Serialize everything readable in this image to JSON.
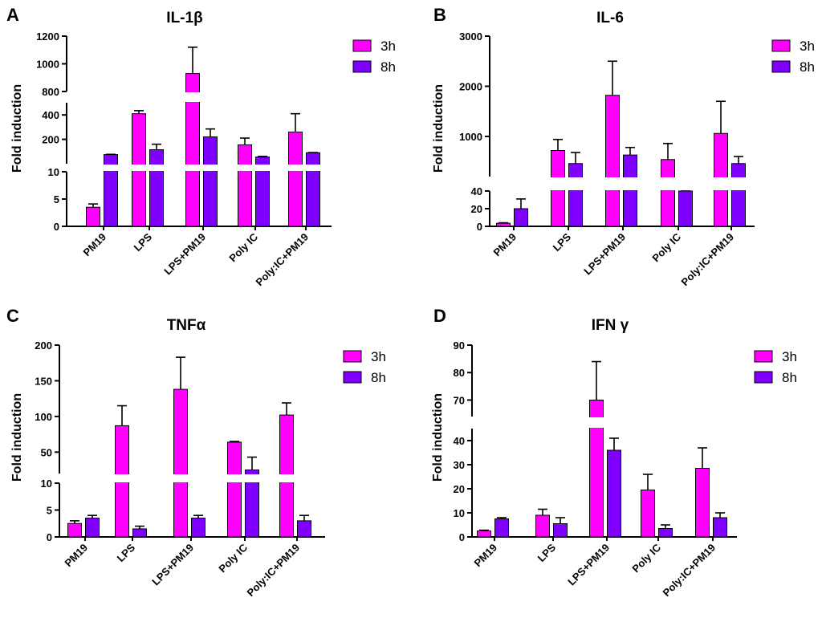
{
  "colors": {
    "3h": "#ff00ff",
    "8h": "#7f00ff",
    "axis": "#000000",
    "break": "#ffffff"
  },
  "chart_data": [
    {
      "type": "bar",
      "panel": "A",
      "title": "IL-1β",
      "xlabel": "",
      "ylabel": "Fold induction",
      "categories": [
        "PM19",
        "LPS",
        "LPS+PM19",
        "Poly IC",
        "Poly:IC+PM19"
      ],
      "series": [
        {
          "name": "3h",
          "values": [
            3.5,
            410,
            930,
            155,
            260
          ],
          "errors": [
            0.6,
            25,
            190,
            55,
            150
          ]
        },
        {
          "name": "8h",
          "values": [
            75,
            115,
            220,
            55,
            90
          ],
          "errors": [
            2,
            45,
            65,
            5,
            2
          ]
        }
      ],
      "y_axis_segments": [
        {
          "range": [
            0,
            10
          ],
          "ticks": [
            0,
            5,
            10
          ]
        },
        {
          "range": [
            0,
            500
          ],
          "ticks": [
            200,
            400
          ]
        },
        {
          "range": [
            800,
            1200
          ],
          "ticks": [
            800,
            1000,
            1200
          ]
        }
      ],
      "legend": "top-right"
    },
    {
      "type": "bar",
      "panel": "B",
      "title": "IL-6",
      "xlabel": "",
      "ylabel": "Fold induction",
      "categories": [
        "PM19",
        "LPS",
        "LPS+PM19",
        "Poly IC",
        "Poly:IC+PM19"
      ],
      "series": [
        {
          "name": "3h",
          "values": [
            3.5,
            720,
            1820,
            540,
            1060
          ],
          "errors": [
            0.5,
            220,
            680,
            320,
            640
          ]
        },
        {
          "name": "8h",
          "values": [
            20,
            460,
            630,
            130,
            460
          ],
          "errors": [
            11,
            220,
            150,
            5,
            140
          ]
        }
      ],
      "y_axis_segments": [
        {
          "range": [
            0,
            40
          ],
          "ticks": [
            0,
            20,
            40
          ]
        },
        {
          "range": [
            200,
            3000
          ],
          "ticks": [
            1000,
            2000,
            3000
          ]
        }
      ],
      "legend": "top-right"
    },
    {
      "type": "bar",
      "panel": "C",
      "title": "TNFα",
      "xlabel": "",
      "ylabel": "Fold induction",
      "categories": [
        "PM19",
        "LPS",
        "LPS+PM19",
        "Poly IC",
        "Poly:IC+PM19"
      ],
      "series": [
        {
          "name": "3h",
          "values": [
            2.5,
            87,
            138,
            64,
            102
          ],
          "errors": [
            0.5,
            28,
            45,
            1,
            17
          ]
        },
        {
          "name": "8h",
          "values": [
            3.5,
            1.5,
            3.5,
            25,
            3
          ],
          "errors": [
            0.5,
            0.5,
            0.5,
            18,
            1
          ]
        }
      ],
      "y_axis_segments": [
        {
          "range": [
            0,
            10
          ],
          "ticks": [
            0,
            5,
            10
          ]
        },
        {
          "range": [
            20,
            200
          ],
          "ticks": [
            50,
            100,
            150,
            200
          ]
        }
      ],
      "legend": "top-right"
    },
    {
      "type": "bar",
      "panel": "D",
      "title": "IFN γ",
      "xlabel": "",
      "ylabel": "Fold induction",
      "categories": [
        "PM19",
        "LPS",
        "LPS+PM19",
        "Poly IC",
        "Poly:IC+PM19"
      ],
      "series": [
        {
          "name": "3h",
          "values": [
            2.5,
            9,
            70,
            19.5,
            28.5
          ],
          "errors": [
            0.3,
            2.5,
            14,
            6.5,
            8.5
          ]
        },
        {
          "name": "8h",
          "values": [
            7.5,
            5.5,
            36,
            3.5,
            8
          ],
          "errors": [
            0.5,
            2.5,
            5,
            1.5,
            2
          ]
        }
      ],
      "y_axis_segments": [
        {
          "range": [
            0,
            45
          ],
          "ticks": [
            0,
            10,
            20,
            30,
            40
          ]
        },
        {
          "range": [
            64,
            90
          ],
          "ticks": [
            70,
            80,
            90
          ]
        }
      ],
      "legend": "top-right"
    }
  ]
}
